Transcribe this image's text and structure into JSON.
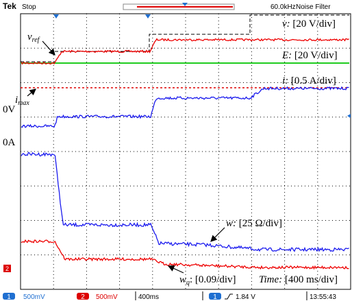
{
  "top_bar": {
    "brand": "Tek",
    "status": "Stop",
    "frequency": "60.0kHz",
    "filter": "Noise Filter"
  },
  "annotations": {
    "v": {
      "name": "v:",
      "scale": "[20 V/div]"
    },
    "E": {
      "name": "E:",
      "scale": "[20 V/div]"
    },
    "i": {
      "name": "i:",
      "scale": "[0.5 A/div]"
    },
    "w": {
      "name": "w:",
      "scale": "[25 Ω/div]"
    },
    "wq": {
      "name": "w",
      "sub": "q",
      "scale": ": [0.09/div]"
    },
    "time": {
      "name": "Time:",
      "scale": "[400 ms/div]"
    },
    "vref": {
      "name": "v",
      "sub": "ref"
    },
    "imax": {
      "name": "i",
      "sub": "max"
    }
  },
  "left_labels": {
    "zero_v": "0V",
    "zero_a": "0A",
    "ch2_marker": "2"
  },
  "bottom_bar": {
    "ch1": "1",
    "ch1_scale": "500mV",
    "ch2": "2",
    "ch2_scale": "500mV",
    "timebase": "400ms",
    "trig_ch": "1",
    "trig_level": "1.84 V",
    "clock": "13:55:43"
  }
}
